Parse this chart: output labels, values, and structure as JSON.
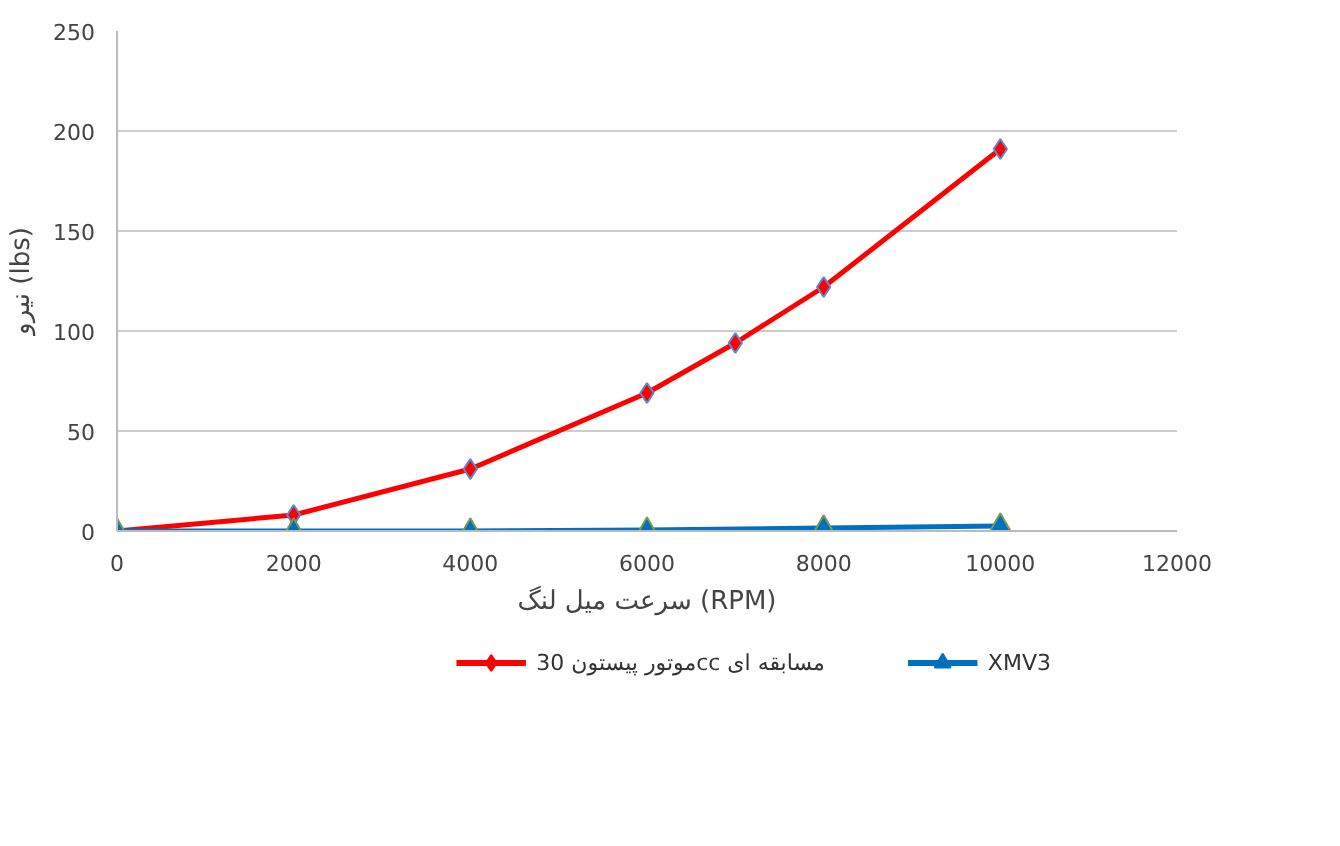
{
  "chart_data": {
    "type": "line",
    "xlabel": "سرعت میل لنگ (RPM)",
    "ylabel": "نیرو (lbs)",
    "xlim": [
      0,
      12000
    ],
    "xticks": [
      0,
      2000,
      4000,
      6000,
      8000,
      10000,
      12000
    ],
    "ylim": [
      0,
      250
    ],
    "yticks": [
      0,
      50,
      100,
      150,
      200,
      250
    ],
    "grid": "y",
    "legend": "bottom",
    "series": [
      {
        "name": "موتور پیستون 30cc مسابقه ای",
        "color": "#ff0000",
        "marker": "diamond",
        "x": [
          0,
          2000,
          4000,
          6000,
          7000,
          8000,
          10000
        ],
        "values": [
          0,
          8,
          31,
          69,
          94,
          122,
          191
        ]
      },
      {
        "name": "XMV3",
        "color": "#0070c0",
        "marker": "triangle",
        "x": [
          0,
          2000,
          4000,
          6000,
          8000,
          10000
        ],
        "values": [
          0,
          0,
          0,
          0.5,
          1.5,
          2.5
        ]
      }
    ]
  }
}
